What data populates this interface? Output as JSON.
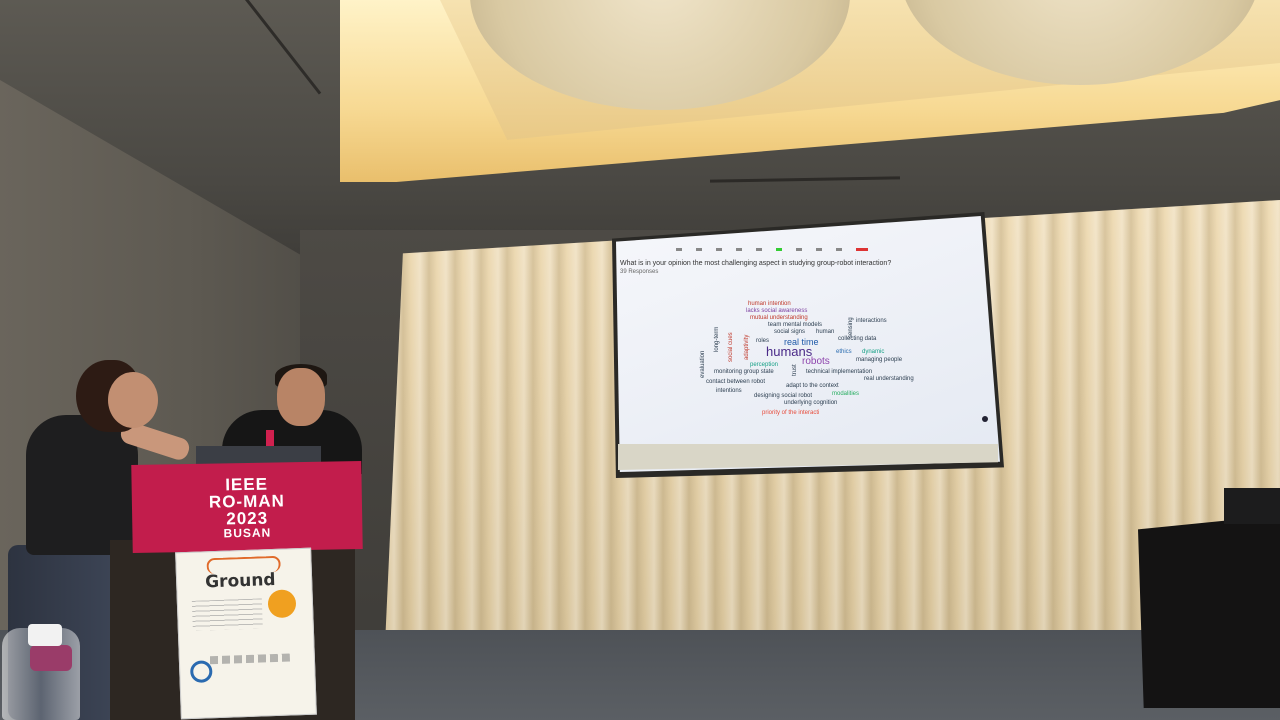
{
  "podium": {
    "line1": "IEEE",
    "line2": "RO-MAN",
    "line3": "2023",
    "line4": "BUSAN"
  },
  "poster": {
    "title": "Ground"
  },
  "slide": {
    "question": "What is in your opinion the most challenging aspect in studying group-robot interaction?",
    "responses": "39 Responses",
    "words": [
      {
        "text": "human intention",
        "color": "#c0392b",
        "size": 6
      },
      {
        "text": "lacks social awareness",
        "color": "#7b3fa0",
        "size": 6
      },
      {
        "text": "mutual understanding",
        "color": "#c0392b",
        "size": 6
      },
      {
        "text": "team mental models",
        "color": "#2c3e50",
        "size": 6
      },
      {
        "text": "social signs",
        "color": "#2c3e50",
        "size": 6
      },
      {
        "text": "human",
        "color": "#2c3e50",
        "size": 6
      },
      {
        "text": "interactions",
        "color": "#2c3e50",
        "size": 6
      },
      {
        "text": "roles",
        "color": "#2c3e50",
        "size": 6
      },
      {
        "text": "real time",
        "color": "#1f5aa8",
        "size": 9
      },
      {
        "text": "collecting data",
        "color": "#2c3e50",
        "size": 6
      },
      {
        "text": "humans",
        "color": "#4a2a88",
        "size": 13
      },
      {
        "text": "ethics",
        "color": "#2b6cb0",
        "size": 6
      },
      {
        "text": "dynamic",
        "color": "#16a085",
        "size": 6
      },
      {
        "text": "robots",
        "color": "#8e44ad",
        "size": 10
      },
      {
        "text": "managing people",
        "color": "#2c3e50",
        "size": 6
      },
      {
        "text": "perception",
        "color": "#16a085",
        "size": 6
      },
      {
        "text": "monitoring group state",
        "color": "#2c3e50",
        "size": 6
      },
      {
        "text": "technical implementation",
        "color": "#2c3e50",
        "size": 6
      },
      {
        "text": "real understanding",
        "color": "#2c3e50",
        "size": 6
      },
      {
        "text": "contact between robot",
        "color": "#2c3e50",
        "size": 6
      },
      {
        "text": "adapt to the context",
        "color": "#2c3e50",
        "size": 6
      },
      {
        "text": "intentions",
        "color": "#2c3e50",
        "size": 6
      },
      {
        "text": "designing social robot",
        "color": "#2c3e50",
        "size": 6
      },
      {
        "text": "modalities",
        "color": "#27ae60",
        "size": 6
      },
      {
        "text": "underlying cognition",
        "color": "#2c3e50",
        "size": 6
      },
      {
        "text": "priority of the interacti",
        "color": "#e74c3c",
        "size": 6
      }
    ],
    "vertical_words": [
      {
        "text": "long-term",
        "color": "#2c3e50"
      },
      {
        "text": "social cues",
        "color": "#c0392b"
      },
      {
        "text": "adaptivity",
        "color": "#c0392b"
      },
      {
        "text": "evaluation",
        "color": "#2c3e50"
      },
      {
        "text": "sensing",
        "color": "#2c3e50"
      },
      {
        "text": "trust",
        "color": "#2c3e50"
      }
    ]
  }
}
